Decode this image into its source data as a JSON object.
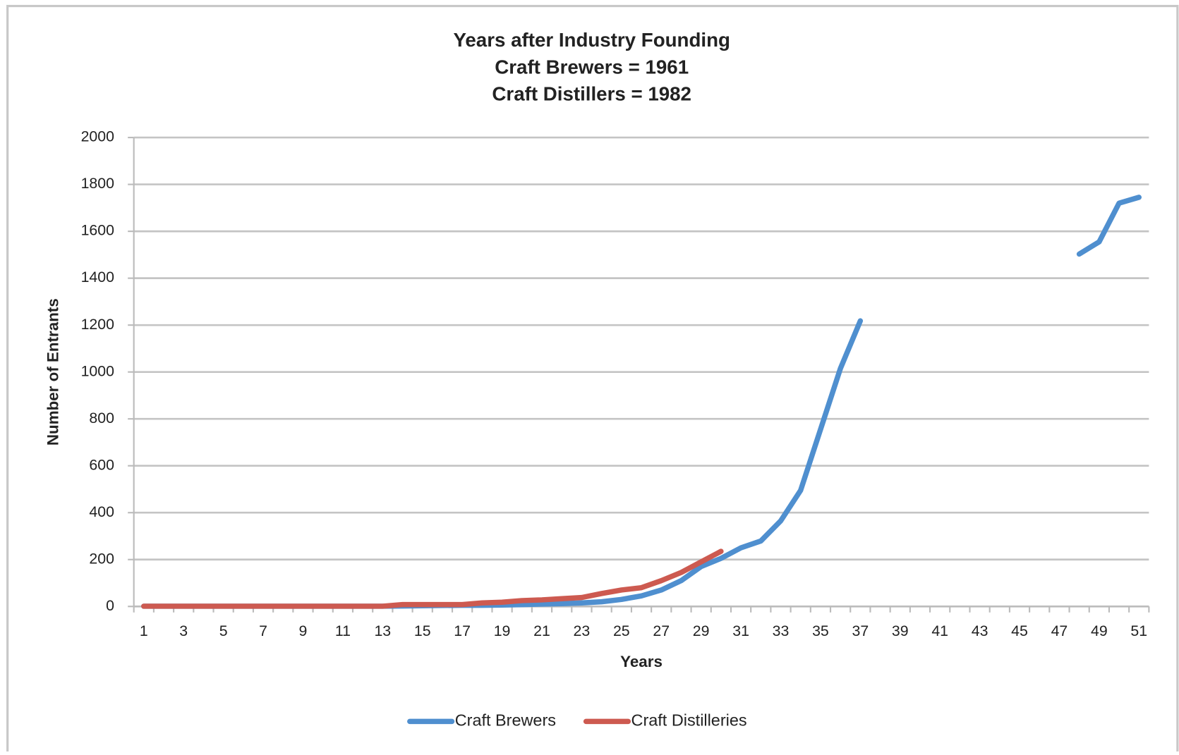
{
  "chart_data": {
    "type": "line",
    "title": "Years after Industry Founding",
    "subtitle": [
      "Craft Brewers = 1961",
      "Craft Distillers = 1982"
    ],
    "x_label": "Years",
    "y_label": "Number of Entrants",
    "categories": [
      1,
      null,
      3,
      null,
      5,
      null,
      7,
      null,
      9,
      null,
      11,
      null,
      13,
      null,
      15,
      null,
      17,
      null,
      19,
      null,
      21,
      null,
      23,
      null,
      25,
      null,
      27,
      null,
      29,
      null,
      31,
      null,
      33,
      null,
      35,
      null,
      37,
      null,
      39,
      null,
      41,
      null,
      43,
      null,
      45,
      null,
      47,
      null,
      49,
      null,
      51
    ],
    "series": [
      {
        "name": "Craft Brewers",
        "color": "#4f8fcf",
        "values": [
          1,
          1,
          1,
          1,
          1,
          1,
          1,
          1,
          1,
          1,
          1,
          1,
          1,
          2,
          3,
          4,
          5,
          5,
          6,
          8,
          10,
          12,
          15,
          20,
          30,
          45,
          70,
          110,
          170,
          205,
          250,
          279,
          365,
          495,
          755,
          1015,
          1218,
          null,
          null,
          null,
          null,
          null,
          null,
          null,
          null,
          null,
          null,
          1503,
          1555,
          1720,
          1745
        ]
      },
      {
        "name": "Craft Distilleries",
        "color": "#cd5a50",
        "values": [
          1,
          1,
          1,
          1,
          1,
          1,
          1,
          1,
          1,
          1,
          1,
          1,
          1,
          8,
          8,
          8,
          8,
          15,
          18,
          25,
          28,
          33,
          38,
          55,
          70,
          80,
          110,
          145,
          190,
          235,
          null,
          null,
          null,
          null,
          null,
          null,
          null,
          null,
          null,
          null,
          null,
          null,
          null,
          null,
          null,
          null,
          null,
          null,
          null,
          null,
          null
        ]
      }
    ],
    "ylim": [
      0,
      2000
    ],
    "yticks": [
      0,
      200,
      400,
      600,
      800,
      1000,
      1200,
      1400,
      1600,
      1800,
      2000
    ],
    "grid": true,
    "legend": "bottom"
  }
}
